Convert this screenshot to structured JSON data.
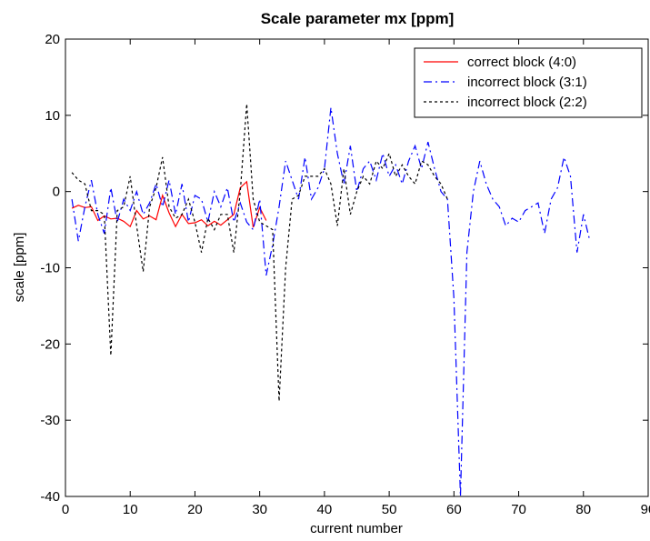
{
  "chart_data": {
    "type": "line",
    "title": "Scale parameter mx [ppm]",
    "xlabel": "current number",
    "ylabel": "scale [ppm]",
    "xlim": [
      0,
      90
    ],
    "ylim": [
      -40,
      20
    ],
    "xticks": [
      0,
      10,
      20,
      30,
      40,
      50,
      60,
      70,
      80,
      90
    ],
    "yticks": [
      -40,
      -30,
      -20,
      -10,
      0,
      10,
      20
    ],
    "grid": false,
    "legend_position": "top-right",
    "series": [
      {
        "name": "correct block (4:0)",
        "color": "#ff0000",
        "style": "solid",
        "points": [
          [
            1,
            -2.2
          ],
          [
            2,
            -1.8
          ],
          [
            3,
            -2.1
          ],
          [
            4,
            -2.0
          ],
          [
            5,
            -3.8
          ],
          [
            6,
            -3.2
          ],
          [
            7,
            -3.6
          ],
          [
            8,
            -3.5
          ],
          [
            9,
            -3.9
          ],
          [
            10,
            -4.6
          ],
          [
            11,
            -2.5
          ],
          [
            12,
            -3.6
          ],
          [
            13,
            -3.2
          ],
          [
            14,
            -3.7
          ],
          [
            15,
            -0.5
          ],
          [
            16,
            -2.8
          ],
          [
            17,
            -4.6
          ],
          [
            18,
            -3.0
          ],
          [
            19,
            -4.2
          ],
          [
            20,
            -4.1
          ],
          [
            21,
            -3.7
          ],
          [
            22,
            -4.5
          ],
          [
            23,
            -3.9
          ],
          [
            24,
            -4.4
          ],
          [
            25,
            -3.7
          ],
          [
            26,
            -3.0
          ],
          [
            27,
            0.5
          ],
          [
            28,
            1.3
          ],
          [
            29,
            -4.7
          ],
          [
            30,
            -2.1
          ],
          [
            31,
            -3.8
          ]
        ]
      },
      {
        "name": "incorrect block (3:1)",
        "color": "#0000ff",
        "style": "dashdot",
        "points": [
          [
            1,
            -1.0
          ],
          [
            2,
            -6.5
          ],
          [
            3,
            -2.0
          ],
          [
            4,
            1.5
          ],
          [
            5,
            -3.0
          ],
          [
            6,
            -5.5
          ],
          [
            7,
            0.5
          ],
          [
            8,
            -4.0
          ],
          [
            9,
            -1.0
          ],
          [
            10,
            -2.5
          ],
          [
            11,
            0.0
          ],
          [
            12,
            -3.0
          ],
          [
            13,
            -1.5
          ],
          [
            14,
            1.0
          ],
          [
            15,
            -2.0
          ],
          [
            16,
            1.5
          ],
          [
            17,
            -3.0
          ],
          [
            18,
            1.0
          ],
          [
            19,
            -4.0
          ],
          [
            20,
            -0.5
          ],
          [
            21,
            -1.0
          ],
          [
            22,
            -4.0
          ],
          [
            23,
            0.0
          ],
          [
            24,
            -2.0
          ],
          [
            25,
            0.5
          ],
          [
            26,
            -4.0
          ],
          [
            27,
            -1.5
          ],
          [
            28,
            -4.0
          ],
          [
            29,
            -5.0
          ],
          [
            30,
            -1.0
          ],
          [
            31,
            -11.0
          ],
          [
            32,
            -7.0
          ],
          [
            33,
            -2.0
          ],
          [
            34,
            4.0
          ],
          [
            35,
            1.5
          ],
          [
            36,
            -1.0
          ],
          [
            37,
            4.5
          ],
          [
            38,
            -1.0
          ],
          [
            39,
            0.5
          ],
          [
            40,
            3.0
          ],
          [
            41,
            11.0
          ],
          [
            42,
            5.0
          ],
          [
            43,
            1.0
          ],
          [
            44,
            6.0
          ],
          [
            45,
            0.0
          ],
          [
            46,
            3.0
          ],
          [
            47,
            4.0
          ],
          [
            48,
            1.5
          ],
          [
            49,
            5.0
          ],
          [
            50,
            2.0
          ],
          [
            51,
            3.5
          ],
          [
            52,
            1.0
          ],
          [
            53,
            4.0
          ],
          [
            54,
            6.0
          ],
          [
            55,
            3.0
          ],
          [
            56,
            6.5
          ],
          [
            57,
            3.0
          ],
          [
            58,
            0.0
          ],
          [
            59,
            -1.0
          ],
          [
            60,
            -14.0
          ],
          [
            61,
            -40.0
          ],
          [
            62,
            -8.0
          ],
          [
            63,
            0.0
          ],
          [
            64,
            4.0
          ],
          [
            65,
            1.0
          ],
          [
            66,
            -1.0
          ],
          [
            67,
            -2.0
          ],
          [
            68,
            -4.5
          ],
          [
            69,
            -3.5
          ],
          [
            70,
            -4.0
          ],
          [
            71,
            -2.5
          ],
          [
            72,
            -2.0
          ],
          [
            73,
            -1.5
          ],
          [
            74,
            -5.5
          ],
          [
            75,
            -1.0
          ],
          [
            76,
            0.5
          ],
          [
            77,
            4.5
          ],
          [
            78,
            2.0
          ],
          [
            79,
            -8.0
          ],
          [
            80,
            -3.0
          ],
          [
            81,
            -6.5
          ]
        ]
      },
      {
        "name": "incorrect block (2:2)",
        "color": "#000000",
        "style": "dotted",
        "points": [
          [
            1,
            2.5
          ],
          [
            2,
            1.5
          ],
          [
            3,
            1.0
          ],
          [
            4,
            -2.5
          ],
          [
            5,
            -2.5
          ],
          [
            6,
            -3.0
          ],
          [
            7,
            -21.5
          ],
          [
            8,
            -2.5
          ],
          [
            9,
            -2.0
          ],
          [
            10,
            2.0
          ],
          [
            11,
            -4.5
          ],
          [
            12,
            -10.5
          ],
          [
            13,
            -2.0
          ],
          [
            14,
            0.5
          ],
          [
            15,
            4.5
          ],
          [
            16,
            -2.0
          ],
          [
            17,
            -3.5
          ],
          [
            18,
            -3.0
          ],
          [
            19,
            -1.0
          ],
          [
            20,
            -4.0
          ],
          [
            21,
            -8.0
          ],
          [
            22,
            -3.5
          ],
          [
            23,
            -5.0
          ],
          [
            24,
            -3.0
          ],
          [
            25,
            -3.0
          ],
          [
            26,
            -8.0
          ],
          [
            27,
            0.0
          ],
          [
            28,
            11.5
          ],
          [
            29,
            -1.0
          ],
          [
            30,
            -4.0
          ],
          [
            31,
            -4.5
          ],
          [
            32,
            -5.0
          ],
          [
            33,
            -27.5
          ],
          [
            34,
            -10.0
          ],
          [
            35,
            -1.0
          ],
          [
            36,
            -0.5
          ],
          [
            37,
            2.0
          ],
          [
            38,
            2.0
          ],
          [
            39,
            2.0
          ],
          [
            40,
            3.0
          ],
          [
            41,
            1.0
          ],
          [
            42,
            -4.5
          ],
          [
            43,
            3.0
          ],
          [
            44,
            -3.0
          ],
          [
            45,
            0.0
          ],
          [
            46,
            2.0
          ],
          [
            47,
            1.0
          ],
          [
            48,
            4.0
          ],
          [
            49,
            3.0
          ],
          [
            50,
            5.0
          ],
          [
            51,
            2.0
          ],
          [
            52,
            3.5
          ],
          [
            53,
            2.0
          ],
          [
            54,
            1.0
          ],
          [
            55,
            4.0
          ],
          [
            56,
            3.5
          ],
          [
            57,
            2.0
          ],
          [
            58,
            1.0
          ],
          [
            59,
            -1.0
          ]
        ]
      }
    ]
  }
}
